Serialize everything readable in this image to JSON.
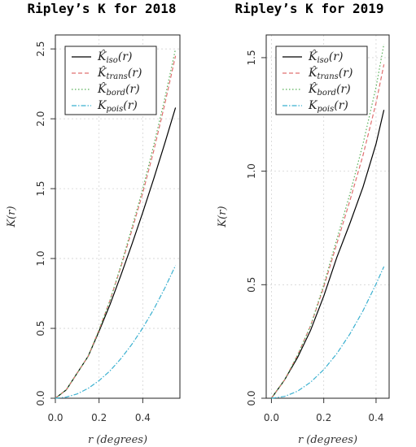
{
  "chart_data": [
    {
      "type": "line",
      "title": "Ripley’s K for 2018",
      "xlabel": "r (degrees)",
      "ylabel": "K(r)",
      "xlim": [
        0,
        0.57
      ],
      "ylim": [
        0,
        2.6
      ],
      "xticks": [
        "0.0",
        "0.2",
        "0.4"
      ],
      "yticks": [
        "0.0",
        "0.5",
        "1.0",
        "1.5",
        "2.0",
        "2.5"
      ],
      "grid": true,
      "legend": "top-left",
      "series": [
        {
          "name": "K̂iso(r)",
          "symbol": "K̂",
          "sub": "iso",
          "arg": "(r)",
          "color": "#000000",
          "dash": "",
          "x": [
            0,
            0.05,
            0.1,
            0.15,
            0.2,
            0.25,
            0.3,
            0.35,
            0.4,
            0.45,
            0.5,
            0.55
          ],
          "y": [
            0,
            0.06,
            0.18,
            0.3,
            0.48,
            0.67,
            0.88,
            1.1,
            1.33,
            1.57,
            1.82,
            2.08
          ]
        },
        {
          "name": "K̂trans(r)",
          "symbol": "K̂",
          "sub": "trans",
          "arg": "(r)",
          "color": "#e07070",
          "dash": "5 3",
          "x": [
            0,
            0.05,
            0.1,
            0.15,
            0.2,
            0.25,
            0.3,
            0.35,
            0.4,
            0.45,
            0.5,
            0.55
          ],
          "y": [
            0,
            0.06,
            0.18,
            0.3,
            0.49,
            0.7,
            0.94,
            1.2,
            1.47,
            1.77,
            2.1,
            2.45
          ]
        },
        {
          "name": "K̂bord(r)",
          "symbol": "K̂",
          "sub": "bord",
          "arg": "(r)",
          "color": "#58b058",
          "dash": "1.5 2.5",
          "x": [
            0,
            0.05,
            0.1,
            0.15,
            0.2,
            0.25,
            0.3,
            0.35,
            0.4,
            0.45,
            0.5,
            0.55
          ],
          "y": [
            0,
            0.06,
            0.18,
            0.3,
            0.49,
            0.7,
            0.95,
            1.22,
            1.5,
            1.81,
            2.14,
            2.5
          ]
        },
        {
          "name": "Kpois(r)",
          "symbol": "K",
          "sub": "pois",
          "arg": "(r)",
          "color": "#3ab0d0",
          "dash": "6 2 1.5 2",
          "x": [
            0,
            0.05,
            0.1,
            0.15,
            0.2,
            0.25,
            0.3,
            0.35,
            0.4,
            0.45,
            0.5,
            0.55
          ],
          "y": [
            0,
            0.008,
            0.031,
            0.071,
            0.126,
            0.196,
            0.283,
            0.385,
            0.503,
            0.636,
            0.785,
            0.95
          ]
        }
      ]
    },
    {
      "type": "line",
      "title": "Ripley’s K for 2019",
      "xlabel": "r (degrees)",
      "ylabel": "K(r)",
      "xlim": [
        -0.02,
        0.45
      ],
      "ylim": [
        0,
        1.6
      ],
      "xticks": [
        "0.0",
        "0.2",
        "0.4"
      ],
      "yticks": [
        "0.0",
        "0.5",
        "1.0",
        "1.5"
      ],
      "grid": true,
      "legend": "top-left",
      "series": [
        {
          "name": "K̂iso(r)",
          "symbol": "K̂",
          "sub": "iso",
          "arg": "(r)",
          "color": "#000000",
          "dash": "",
          "x": [
            0,
            0.05,
            0.1,
            0.15,
            0.2,
            0.25,
            0.3,
            0.35,
            0.4,
            0.43
          ],
          "y": [
            0,
            0.08,
            0.18,
            0.3,
            0.45,
            0.62,
            0.77,
            0.93,
            1.12,
            1.27
          ]
        },
        {
          "name": "K̂trans(r)",
          "symbol": "K̂",
          "sub": "trans",
          "arg": "(r)",
          "color": "#e07070",
          "dash": "5 3",
          "x": [
            0,
            0.05,
            0.1,
            0.15,
            0.2,
            0.25,
            0.3,
            0.35,
            0.4,
            0.43
          ],
          "y": [
            0,
            0.08,
            0.19,
            0.32,
            0.49,
            0.68,
            0.87,
            1.07,
            1.3,
            1.47
          ]
        },
        {
          "name": "K̂bord(r)",
          "symbol": "K̂",
          "sub": "bord",
          "arg": "(r)",
          "color": "#58b058",
          "dash": "1.5 2.5",
          "x": [
            0,
            0.05,
            0.1,
            0.15,
            0.2,
            0.25,
            0.3,
            0.35,
            0.4,
            0.43
          ],
          "y": [
            0,
            0.08,
            0.19,
            0.32,
            0.5,
            0.7,
            0.9,
            1.12,
            1.37,
            1.56
          ]
        },
        {
          "name": "Kpois(r)",
          "symbol": "K",
          "sub": "pois",
          "arg": "(r)",
          "color": "#3ab0d0",
          "dash": "6 2 1.5 2",
          "x": [
            0,
            0.05,
            0.1,
            0.15,
            0.2,
            0.25,
            0.3,
            0.35,
            0.4,
            0.43
          ],
          "y": [
            0,
            0.008,
            0.031,
            0.071,
            0.126,
            0.196,
            0.283,
            0.385,
            0.503,
            0.58
          ]
        }
      ]
    }
  ]
}
